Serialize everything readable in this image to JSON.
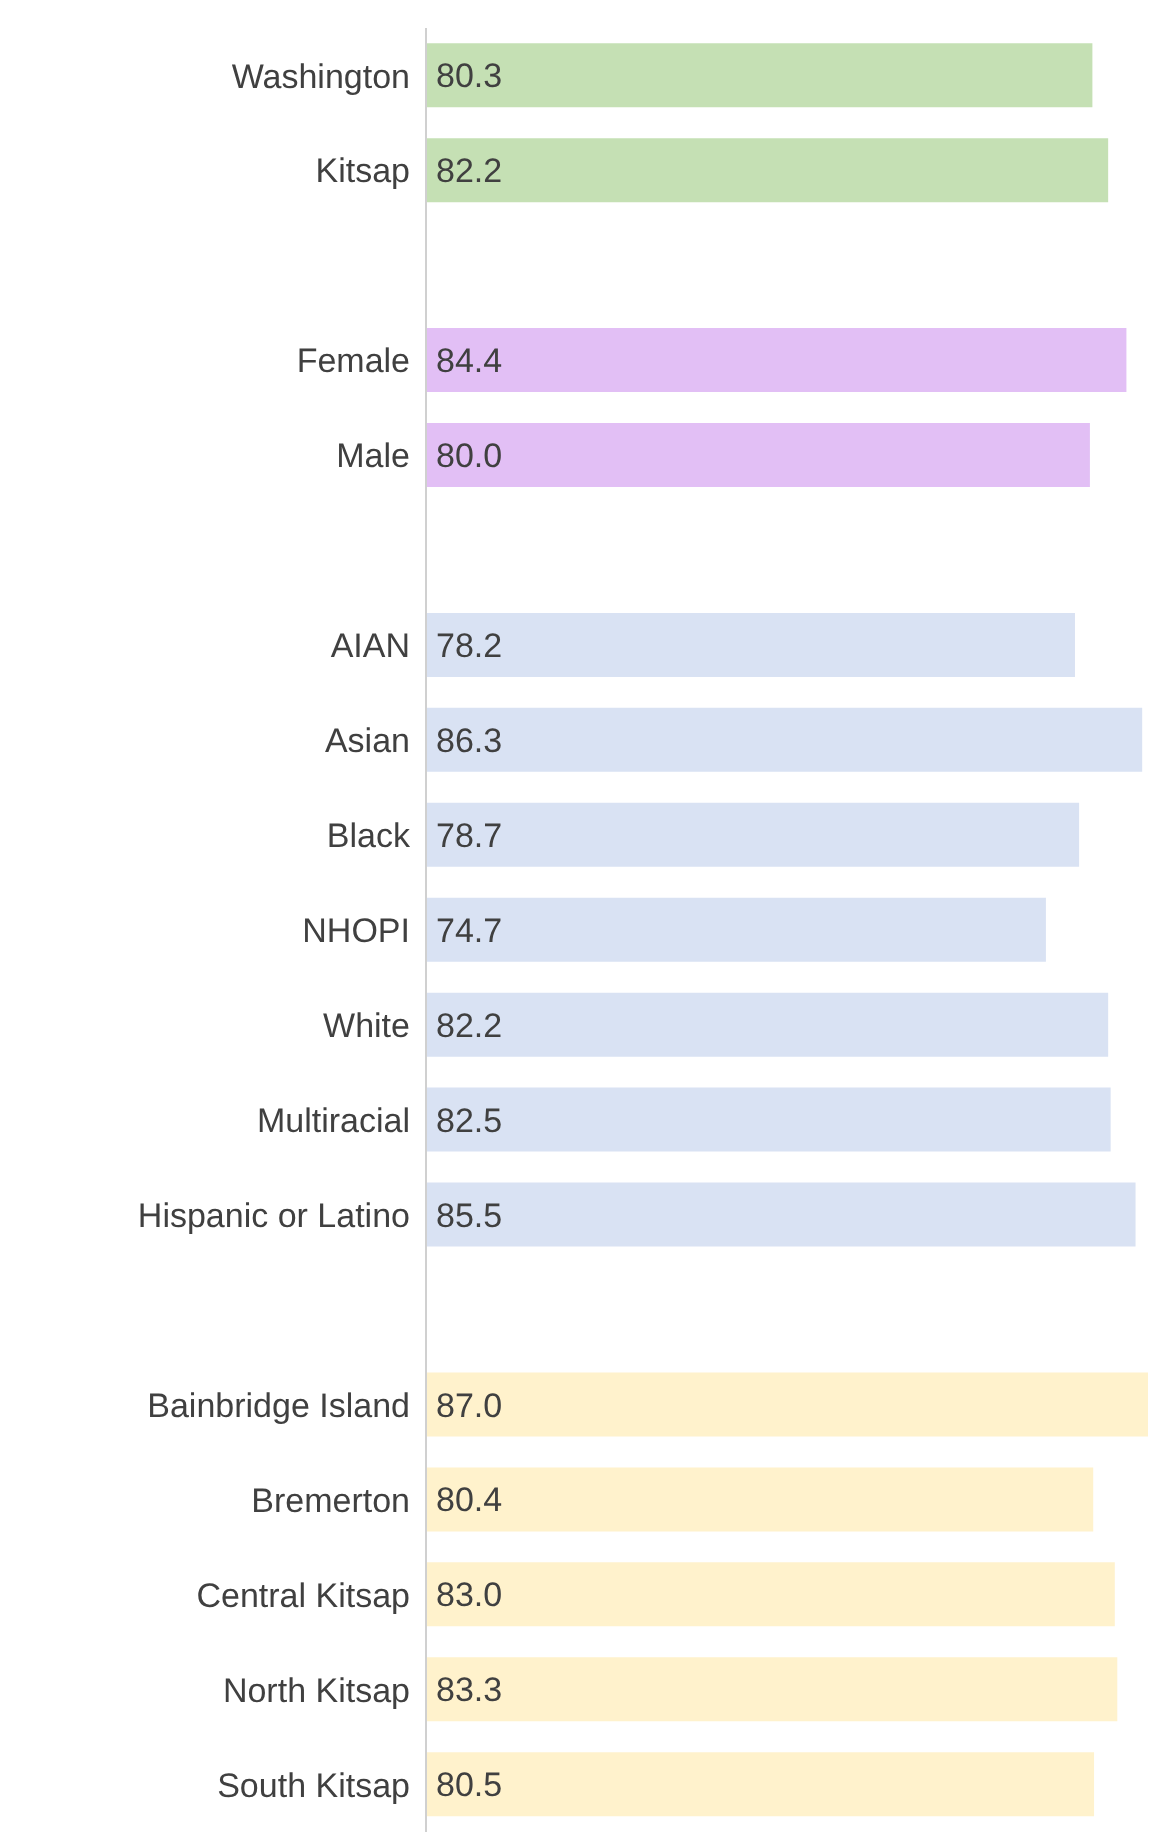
{
  "chart_data": {
    "type": "bar",
    "orientation": "horizontal",
    "categories": [
      "Washington",
      "Kitsap",
      null,
      "Female",
      "Male",
      null,
      "AIAN",
      "Asian",
      "Black",
      "NHOPI",
      "White",
      "Multiracial",
      "Hispanic or Latino",
      null,
      "Bainbridge Island",
      "Bremerton",
      "Central Kitsap",
      "North Kitsap",
      "South Kitsap"
    ],
    "values": [
      80.3,
      82.2,
      null,
      84.4,
      80.0,
      null,
      78.2,
      86.3,
      78.7,
      74.7,
      82.2,
      82.5,
      85.5,
      null,
      87.0,
      80.4,
      83.0,
      83.3,
      80.5
    ],
    "value_labels": [
      "80.3",
      "82.2",
      null,
      "84.4",
      "80.0",
      null,
      "78.2",
      "86.3",
      "78.7",
      "74.7",
      "82.2",
      "82.5",
      "85.5",
      null,
      "87.0",
      "80.4",
      "83.0",
      "83.3",
      "80.5"
    ],
    "colors": [
      "#c5e0b4",
      "#c5e0b4",
      null,
      "#e2bff5",
      "#e2bff5",
      null,
      "#d9e2f3",
      "#d9e2f3",
      "#d9e2f3",
      "#d9e2f3",
      "#d9e2f3",
      "#d9e2f3",
      "#d9e2f3",
      null,
      "#fff2cc",
      "#fff2cc",
      "#fff2cc",
      "#fff2cc",
      "#fff2cc"
    ],
    "grid": false,
    "legend": false
  }
}
